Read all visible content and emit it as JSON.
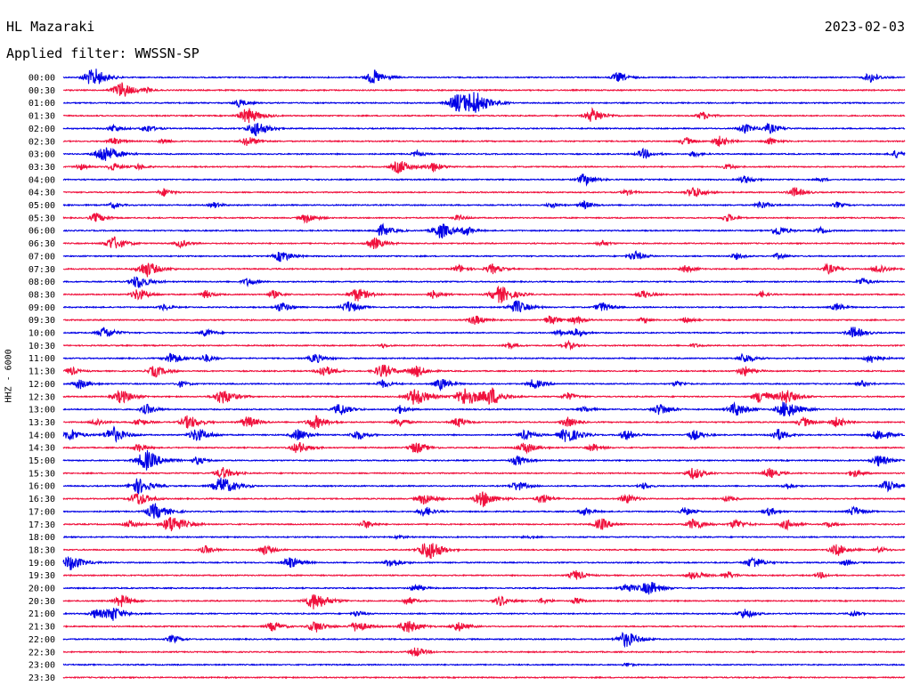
{
  "header": {
    "station": "HL Mazaraki",
    "date": "2023-02-03",
    "filter": "Applied filter: WWSSN-SP"
  },
  "colors": {
    "trace_a": "#0000e6",
    "trace_b": "#f0103c"
  },
  "chart_data": {
    "type": "line",
    "title": "HL Mazaraki",
    "ylabel": "HHZ - 6000",
    "x_start": "00:00",
    "x_span_minutes": 30,
    "tick_labels": [
      "00:00",
      "00:30",
      "01:00",
      "01:30",
      "02:00",
      "02:30",
      "03:00",
      "03:30",
      "04:00",
      "04:30",
      "05:00",
      "05:30",
      "06:00",
      "06:30",
      "07:00",
      "07:30",
      "08:00",
      "08:30",
      "09:00",
      "09:30",
      "10:00",
      "10:30",
      "11:00",
      "11:30",
      "12:00",
      "12:30",
      "13:00",
      "13:30",
      "14:00",
      "14:30",
      "15:00",
      "15:30",
      "16:00",
      "16:30",
      "17:00",
      "17:30",
      "18:00",
      "18:30",
      "19:00",
      "19:30",
      "20:00",
      "20:30",
      "21:00",
      "21:30",
      "22:00",
      "22:30",
      "23:00",
      "23:30"
    ],
    "series": [
      {
        "label": "00:00",
        "bursts": [
          [
            0.03,
            0.5
          ],
          [
            0.04,
            0.7
          ],
          [
            0.37,
            0.7
          ],
          [
            0.66,
            0.5
          ],
          [
            0.96,
            0.5
          ]
        ]
      },
      {
        "label": "00:30",
        "bursts": [
          [
            0.07,
            0.8
          ],
          [
            0.1,
            0.2
          ]
        ]
      },
      {
        "label": "01:00",
        "bursts": [
          [
            0.21,
            0.4
          ],
          [
            0.47,
            0.9
          ],
          [
            0.49,
            1.0
          ]
        ]
      },
      {
        "label": "01:30",
        "bursts": [
          [
            0.22,
            0.8
          ],
          [
            0.63,
            0.7
          ],
          [
            0.76,
            0.4
          ]
        ]
      },
      {
        "label": "02:00",
        "bursts": [
          [
            0.06,
            0.4
          ],
          [
            0.1,
            0.4
          ],
          [
            0.23,
            0.8
          ],
          [
            0.81,
            0.5
          ],
          [
            0.84,
            0.5
          ]
        ]
      },
      {
        "label": "02:30",
        "bursts": [
          [
            0.06,
            0.4
          ],
          [
            0.12,
            0.3
          ],
          [
            0.22,
            0.5
          ],
          [
            0.74,
            0.4
          ],
          [
            0.78,
            0.5
          ],
          [
            0.84,
            0.4
          ]
        ]
      },
      {
        "label": "03:00",
        "bursts": [
          [
            0.05,
            0.9
          ],
          [
            0.42,
            0.3
          ],
          [
            0.69,
            0.5
          ],
          [
            0.75,
            0.3
          ],
          [
            0.99,
            0.4
          ]
        ]
      },
      {
        "label": "03:30",
        "bursts": [
          [
            0.02,
            0.3
          ],
          [
            0.06,
            0.4
          ],
          [
            0.09,
            0.3
          ],
          [
            0.4,
            0.7
          ],
          [
            0.44,
            0.5
          ],
          [
            0.79,
            0.3
          ]
        ]
      },
      {
        "label": "04:00",
        "bursts": [
          [
            0.62,
            0.6
          ],
          [
            0.81,
            0.4
          ],
          [
            0.9,
            0.2
          ]
        ]
      },
      {
        "label": "04:30",
        "bursts": [
          [
            0.12,
            0.4
          ],
          [
            0.67,
            0.3
          ],
          [
            0.75,
            0.6
          ],
          [
            0.87,
            0.5
          ]
        ]
      },
      {
        "label": "05:00",
        "bursts": [
          [
            0.06,
            0.3
          ],
          [
            0.18,
            0.3
          ],
          [
            0.58,
            0.3
          ],
          [
            0.62,
            0.4
          ],
          [
            0.83,
            0.4
          ],
          [
            0.92,
            0.3
          ]
        ]
      },
      {
        "label": "05:30",
        "bursts": [
          [
            0.04,
            0.5
          ],
          [
            0.29,
            0.5
          ],
          [
            0.47,
            0.3
          ],
          [
            0.79,
            0.4
          ]
        ]
      },
      {
        "label": "06:00",
        "bursts": [
          [
            0.38,
            0.6
          ],
          [
            0.45,
            0.8
          ],
          [
            0.48,
            0.4
          ],
          [
            0.85,
            0.5
          ],
          [
            0.9,
            0.3
          ]
        ]
      },
      {
        "label": "06:30",
        "bursts": [
          [
            0.06,
            0.7
          ],
          [
            0.14,
            0.4
          ],
          [
            0.37,
            0.6
          ],
          [
            0.64,
            0.3
          ]
        ]
      },
      {
        "label": "07:00",
        "bursts": [
          [
            0.26,
            0.6
          ],
          [
            0.68,
            0.5
          ],
          [
            0.8,
            0.3
          ],
          [
            0.85,
            0.3
          ]
        ]
      },
      {
        "label": "07:30",
        "bursts": [
          [
            0.1,
            0.8
          ],
          [
            0.47,
            0.4
          ],
          [
            0.51,
            0.5
          ],
          [
            0.74,
            0.4
          ],
          [
            0.91,
            0.5
          ],
          [
            0.97,
            0.5
          ]
        ]
      },
      {
        "label": "08:00",
        "bursts": [
          [
            0.09,
            0.7
          ],
          [
            0.22,
            0.4
          ],
          [
            0.95,
            0.4
          ]
        ]
      },
      {
        "label": "08:30",
        "bursts": [
          [
            0.09,
            0.6
          ],
          [
            0.17,
            0.4
          ],
          [
            0.25,
            0.4
          ],
          [
            0.35,
            0.7
          ],
          [
            0.44,
            0.4
          ],
          [
            0.52,
            0.9
          ],
          [
            0.69,
            0.4
          ],
          [
            0.83,
            0.3
          ]
        ]
      },
      {
        "label": "09:00",
        "bursts": [
          [
            0.12,
            0.3
          ],
          [
            0.26,
            0.5
          ],
          [
            0.34,
            0.6
          ],
          [
            0.54,
            0.7
          ],
          [
            0.64,
            0.5
          ],
          [
            0.92,
            0.4
          ]
        ]
      },
      {
        "label": "09:30",
        "bursts": [
          [
            0.49,
            0.5
          ],
          [
            0.58,
            0.5
          ],
          [
            0.61,
            0.4
          ],
          [
            0.69,
            0.3
          ],
          [
            0.74,
            0.3
          ]
        ]
      },
      {
        "label": "10:00",
        "bursts": [
          [
            0.05,
            0.6
          ],
          [
            0.17,
            0.4
          ],
          [
            0.59,
            0.3
          ],
          [
            0.61,
            0.4
          ],
          [
            0.94,
            0.6
          ]
        ]
      },
      {
        "label": "10:30",
        "bursts": [
          [
            0.38,
            0.2
          ],
          [
            0.53,
            0.3
          ],
          [
            0.6,
            0.4
          ],
          [
            0.75,
            0.2
          ]
        ]
      },
      {
        "label": "11:00",
        "bursts": [
          [
            0.13,
            0.6
          ],
          [
            0.17,
            0.4
          ],
          [
            0.3,
            0.5
          ],
          [
            0.81,
            0.5
          ],
          [
            0.96,
            0.5
          ]
        ]
      },
      {
        "label": "11:30",
        "bursts": [
          [
            0.01,
            0.4
          ],
          [
            0.11,
            0.6
          ],
          [
            0.31,
            0.6
          ],
          [
            0.38,
            0.7
          ],
          [
            0.42,
            0.6
          ],
          [
            0.81,
            0.5
          ]
        ]
      },
      {
        "label": "12:00",
        "bursts": [
          [
            0.02,
            0.5
          ],
          [
            0.14,
            0.3
          ],
          [
            0.38,
            0.4
          ],
          [
            0.45,
            0.6
          ],
          [
            0.56,
            0.5
          ],
          [
            0.73,
            0.3
          ],
          [
            0.95,
            0.3
          ]
        ]
      },
      {
        "label": "12:30",
        "bursts": [
          [
            0.07,
            0.7
          ],
          [
            0.19,
            0.8
          ],
          [
            0.42,
            0.9
          ],
          [
            0.48,
            1.0
          ],
          [
            0.51,
            0.8
          ],
          [
            0.6,
            0.4
          ],
          [
            0.83,
            0.7
          ],
          [
            0.86,
            0.7
          ]
        ]
      },
      {
        "label": "13:00",
        "bursts": [
          [
            0.1,
            0.5
          ],
          [
            0.33,
            0.6
          ],
          [
            0.4,
            0.4
          ],
          [
            0.62,
            0.3
          ],
          [
            0.71,
            0.6
          ],
          [
            0.8,
            0.7
          ],
          [
            0.86,
            0.9
          ]
        ]
      },
      {
        "label": "13:30",
        "bursts": [
          [
            0.04,
            0.4
          ],
          [
            0.09,
            0.4
          ],
          [
            0.15,
            0.7
          ],
          [
            0.22,
            0.6
          ],
          [
            0.3,
            0.7
          ],
          [
            0.4,
            0.4
          ],
          [
            0.47,
            0.5
          ],
          [
            0.6,
            0.5
          ],
          [
            0.88,
            0.5
          ],
          [
            0.92,
            0.5
          ]
        ]
      },
      {
        "label": "14:00",
        "bursts": [
          [
            0.01,
            0.6
          ],
          [
            0.06,
            0.8
          ],
          [
            0.16,
            0.7
          ],
          [
            0.28,
            0.6
          ],
          [
            0.35,
            0.5
          ],
          [
            0.55,
            0.5
          ],
          [
            0.6,
            0.8
          ],
          [
            0.67,
            0.5
          ],
          [
            0.75,
            0.5
          ],
          [
            0.85,
            0.6
          ],
          [
            0.97,
            0.6
          ]
        ]
      },
      {
        "label": "14:30",
        "bursts": [
          [
            0.09,
            0.4
          ],
          [
            0.28,
            0.6
          ],
          [
            0.42,
            0.6
          ],
          [
            0.55,
            0.6
          ],
          [
            0.63,
            0.4
          ]
        ]
      },
      {
        "label": "15:00",
        "bursts": [
          [
            0.1,
            1.0
          ],
          [
            0.16,
            0.4
          ],
          [
            0.54,
            0.5
          ],
          [
            0.97,
            0.6
          ]
        ]
      },
      {
        "label": "15:30",
        "bursts": [
          [
            0.19,
            0.6
          ],
          [
            0.75,
            0.6
          ],
          [
            0.84,
            0.5
          ],
          [
            0.94,
            0.4
          ]
        ]
      },
      {
        "label": "16:00",
        "bursts": [
          [
            0.09,
            0.8
          ],
          [
            0.19,
            0.9
          ],
          [
            0.54,
            0.5
          ],
          [
            0.69,
            0.3
          ],
          [
            0.86,
            0.3
          ],
          [
            0.98,
            0.6
          ]
        ]
      },
      {
        "label": "16:30",
        "bursts": [
          [
            0.09,
            0.7
          ],
          [
            0.43,
            0.6
          ],
          [
            0.5,
            0.8
          ],
          [
            0.57,
            0.5
          ],
          [
            0.67,
            0.5
          ],
          [
            0.79,
            0.3
          ]
        ]
      },
      {
        "label": "17:00",
        "bursts": [
          [
            0.11,
            0.8
          ],
          [
            0.43,
            0.5
          ],
          [
            0.62,
            0.4
          ],
          [
            0.74,
            0.4
          ],
          [
            0.84,
            0.4
          ],
          [
            0.94,
            0.5
          ]
        ]
      },
      {
        "label": "17:30",
        "bursts": [
          [
            0.08,
            0.4
          ],
          [
            0.13,
            0.9
          ],
          [
            0.36,
            0.4
          ],
          [
            0.64,
            0.6
          ],
          [
            0.75,
            0.6
          ],
          [
            0.8,
            0.5
          ],
          [
            0.86,
            0.5
          ],
          [
            0.91,
            0.3
          ]
        ]
      },
      {
        "label": "18:00",
        "bursts": [
          [
            0.4,
            0.2
          ],
          [
            0.55,
            0.2
          ]
        ]
      },
      {
        "label": "18:30",
        "bursts": [
          [
            0.17,
            0.4
          ],
          [
            0.24,
            0.5
          ],
          [
            0.43,
            0.6
          ],
          [
            0.44,
            0.7
          ],
          [
            0.92,
            0.6
          ],
          [
            0.97,
            0.3
          ]
        ]
      },
      {
        "label": "19:00",
        "bursts": [
          [
            0.01,
            0.8
          ],
          [
            0.27,
            0.6
          ],
          [
            0.39,
            0.5
          ],
          [
            0.82,
            0.6
          ],
          [
            0.93,
            0.3
          ]
        ]
      },
      {
        "label": "19:30",
        "bursts": [
          [
            0.61,
            0.5
          ],
          [
            0.75,
            0.5
          ],
          [
            0.79,
            0.4
          ],
          [
            0.9,
            0.3
          ]
        ]
      },
      {
        "label": "20:00",
        "bursts": [
          [
            0.42,
            0.4
          ],
          [
            0.67,
            0.5
          ],
          [
            0.7,
            0.6
          ],
          [
            0.69,
            0.3
          ]
        ]
      },
      {
        "label": "20:30",
        "bursts": [
          [
            0.07,
            0.6
          ],
          [
            0.3,
            0.9
          ],
          [
            0.41,
            0.4
          ],
          [
            0.52,
            0.5
          ],
          [
            0.57,
            0.3
          ],
          [
            0.61,
            0.3
          ]
        ]
      },
      {
        "label": "21:00",
        "bursts": [
          [
            0.04,
            0.5
          ],
          [
            0.06,
            0.7
          ],
          [
            0.35,
            0.3
          ],
          [
            0.81,
            0.5
          ],
          [
            0.94,
            0.3
          ]
        ]
      },
      {
        "label": "21:30",
        "bursts": [
          [
            0.25,
            0.5
          ],
          [
            0.3,
            0.6
          ],
          [
            0.35,
            0.6
          ],
          [
            0.41,
            0.7
          ],
          [
            0.47,
            0.5
          ]
        ]
      },
      {
        "label": "22:00",
        "bursts": [
          [
            0.13,
            0.4
          ],
          [
            0.67,
            0.8
          ]
        ]
      },
      {
        "label": "22:30",
        "bursts": [
          [
            0.42,
            0.5
          ]
        ]
      },
      {
        "label": "23:00",
        "bursts": [
          [
            0.67,
            0.2
          ]
        ]
      },
      {
        "label": "23:30",
        "bursts": []
      }
    ],
    "grid": false
  }
}
